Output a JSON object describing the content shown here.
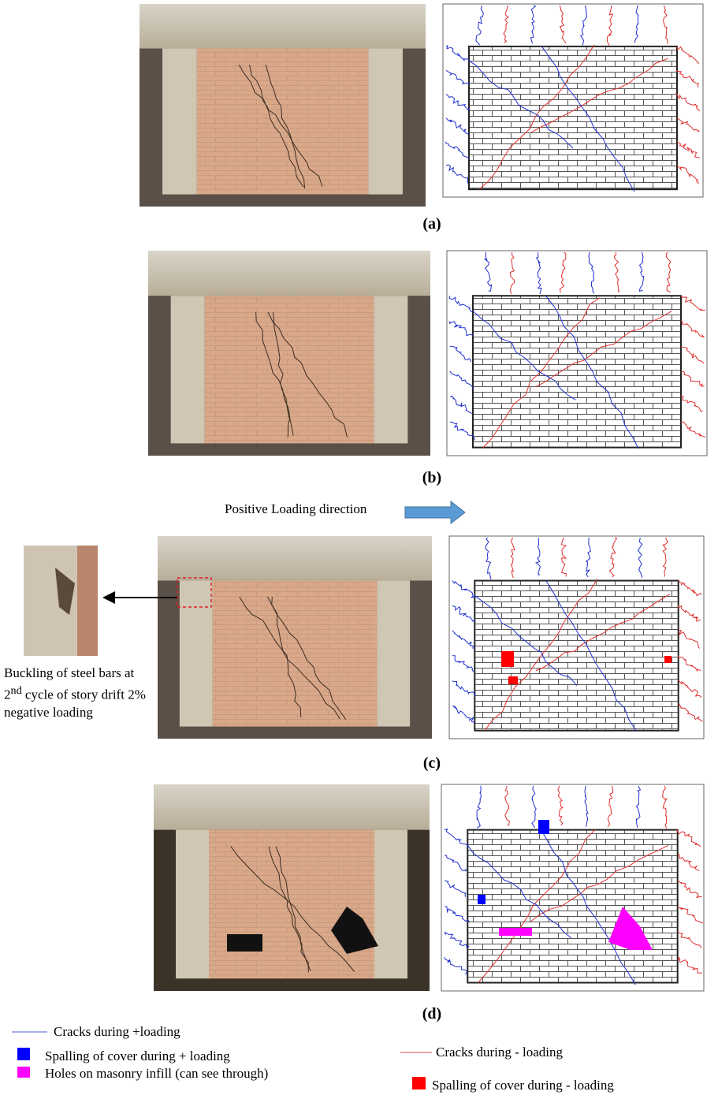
{
  "panels": [
    {
      "label": "(a)"
    },
    {
      "label": "(b)"
    },
    {
      "label": "(c)"
    },
    {
      "label": "(d)"
    }
  ],
  "loading_direction": "Positive Loading direction",
  "callout": {
    "text": "Buckling of steel bars at 2",
    "superscript": "nd",
    "text_after": " cycle of story drift 2% negative loading"
  },
  "legend": [
    {
      "label": "Cracks during +loading"
    },
    {
      "label": "Spalling of cover during + loading"
    },
    {
      "label": "Holes on masonry infill (can see through)"
    },
    {
      "label": "Cracks during - loading"
    },
    {
      "label": "Spalling of cover during - loading"
    }
  ]
}
